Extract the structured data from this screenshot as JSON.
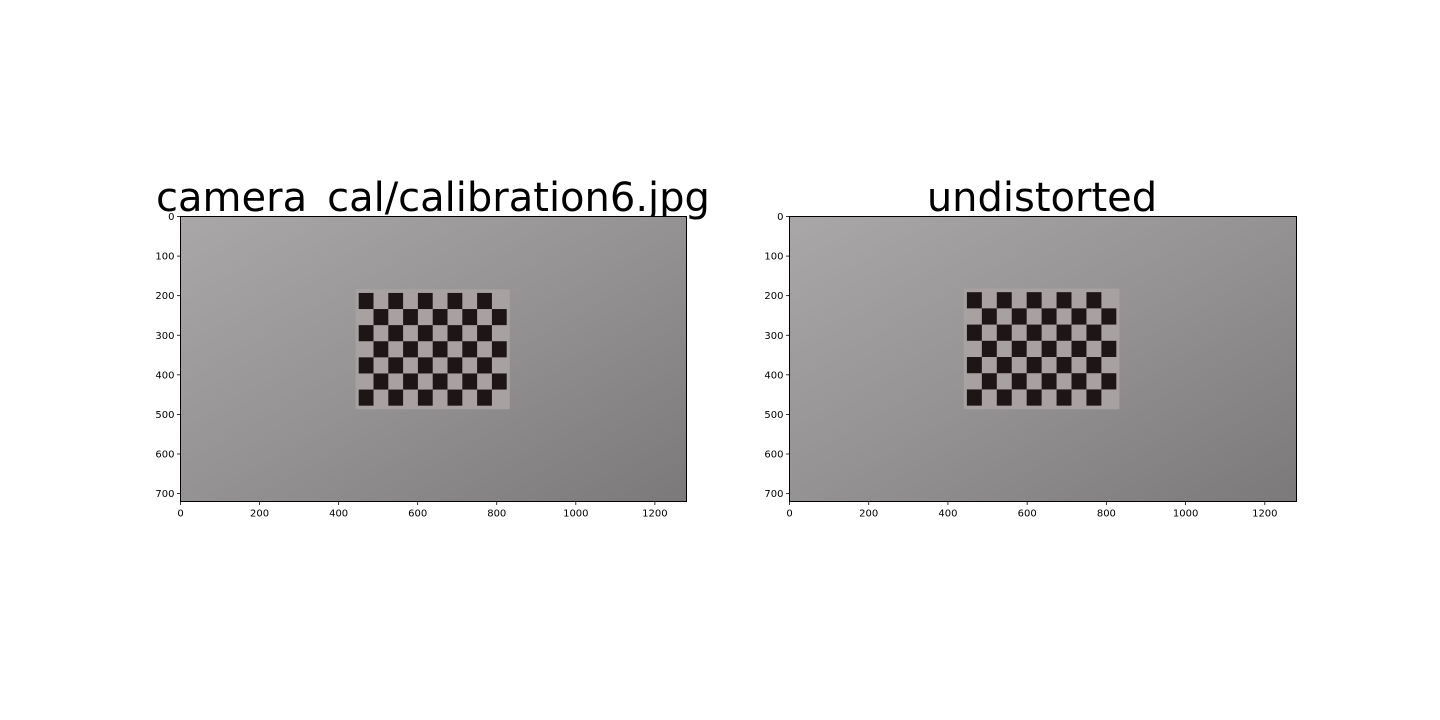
{
  "chart_data": [
    {
      "type": "image",
      "title": "camera_cal/calibration6.jpg",
      "xlim": [
        0,
        1280
      ],
      "ylim": [
        720,
        0
      ],
      "xticks": [
        0,
        200,
        400,
        600,
        800,
        1000,
        1200
      ],
      "yticks": [
        0,
        100,
        200,
        300,
        400,
        500,
        600,
        700
      ],
      "image": {
        "background_color": "#9a9899",
        "content": "checkerboard on grey wall",
        "board": {
          "x0": 443,
          "x1": 833,
          "y0": 184,
          "y1": 487,
          "cols": 10,
          "rows": 7
        },
        "dark_color": "#1e1517",
        "light_color": "#a8a1a2"
      }
    },
    {
      "type": "image",
      "title": "undistorted",
      "xlim": [
        0,
        1280
      ],
      "ylim": [
        720,
        0
      ],
      "xticks": [
        0,
        200,
        400,
        600,
        800,
        1000,
        1200
      ],
      "yticks": [
        0,
        100,
        200,
        300,
        400,
        500,
        600,
        700
      ],
      "image": {
        "background_color": "#9a9899",
        "content": "checkerboard on grey wall",
        "board": {
          "x0": 440,
          "x1": 833,
          "y0": 182,
          "y1": 487,
          "cols": 10,
          "rows": 7
        },
        "dark_color": "#1e1517",
        "light_color": "#a8a1a2"
      }
    }
  ]
}
